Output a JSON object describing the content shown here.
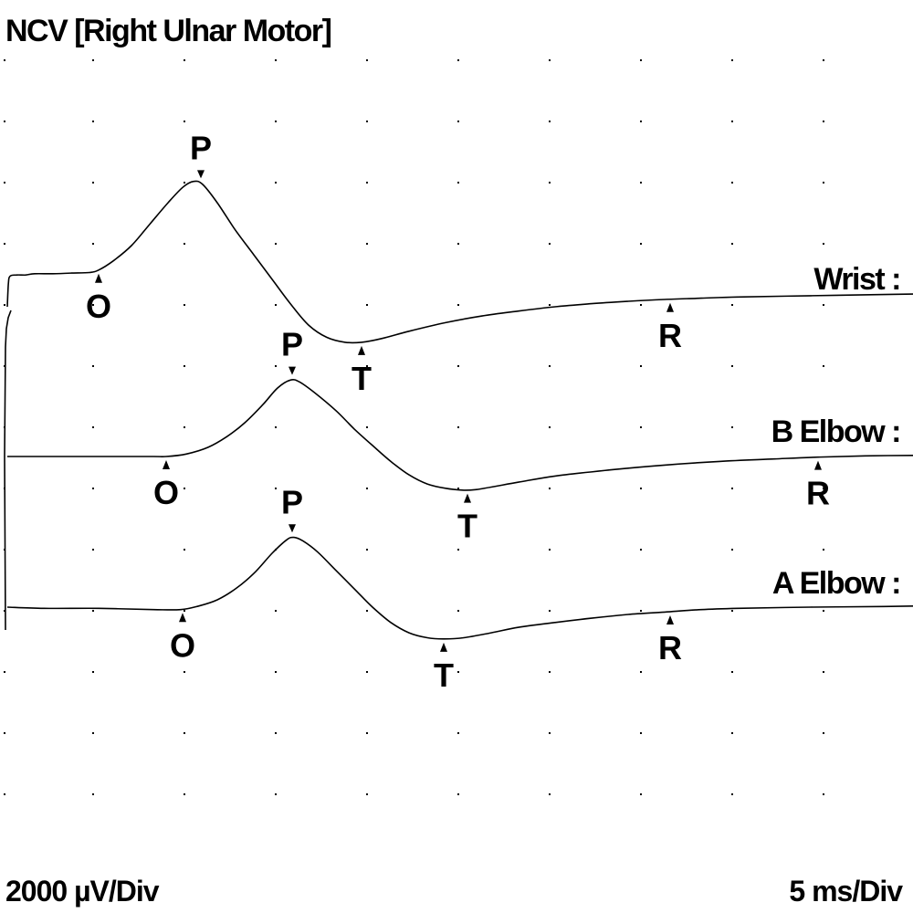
{
  "chart_data": {
    "type": "line",
    "title": "NCV [Right Ulnar Motor]",
    "y_scale_label": "2000 µV/Div",
    "x_scale_label": "5 ms/Div",
    "y_per_div_uV": 2000,
    "x_per_div_ms": 5,
    "x_range_ms": [
      0,
      50
    ],
    "grid": "dotted",
    "series": [
      {
        "name": "Wrist :",
        "points": [
          [
            0.0,
            0.0
          ],
          [
            0.06,
            0.38
          ],
          [
            0.15,
            0.5
          ],
          [
            0.5,
            0.52
          ],
          [
            1.0,
            0.52
          ],
          [
            1.5,
            0.54
          ],
          [
            2.5,
            0.54
          ],
          [
            3.5,
            0.55
          ],
          [
            4.5,
            0.56
          ],
          [
            5.0,
            0.6
          ],
          [
            5.8,
            0.75
          ],
          [
            6.8,
            1.0
          ],
          [
            7.8,
            1.35
          ],
          [
            8.8,
            1.7
          ],
          [
            9.6,
            1.95
          ],
          [
            10.2,
            2.05
          ],
          [
            10.7,
            2.0
          ],
          [
            11.5,
            1.7
          ],
          [
            12.5,
            1.25
          ],
          [
            13.5,
            0.85
          ],
          [
            14.5,
            0.45
          ],
          [
            15.5,
            0.05
          ],
          [
            16.5,
            -0.3
          ],
          [
            17.5,
            -0.5
          ],
          [
            18.5,
            -0.58
          ],
          [
            19.4,
            -0.58
          ],
          [
            20.5,
            -0.52
          ],
          [
            22.0,
            -0.4
          ],
          [
            24.0,
            -0.26
          ],
          [
            26.0,
            -0.15
          ],
          [
            28.0,
            -0.07
          ],
          [
            30.0,
            0.0
          ],
          [
            32.0,
            0.05
          ],
          [
            34.0,
            0.09
          ],
          [
            36.0,
            0.12
          ],
          [
            38.0,
            0.14
          ],
          [
            40.0,
            0.16
          ],
          [
            44.0,
            0.18
          ],
          [
            48.0,
            0.2
          ],
          [
            50.0,
            0.21
          ]
        ],
        "markers": [
          {
            "label": "O",
            "x_ms": 5.0
          },
          {
            "label": "P",
            "x_ms": 10.6
          },
          {
            "label": "T",
            "x_ms": 19.4
          },
          {
            "label": "R",
            "x_ms": 36.3
          }
        ]
      },
      {
        "name": "B Elbow :",
        "points": [
          [
            0.0,
            0.0
          ],
          [
            2.0,
            0.0
          ],
          [
            5.0,
            0.0
          ],
          [
            8.0,
            0.0
          ],
          [
            8.7,
            0.0
          ],
          [
            9.8,
            0.04
          ],
          [
            11.0,
            0.15
          ],
          [
            12.0,
            0.32
          ],
          [
            13.0,
            0.55
          ],
          [
            14.0,
            0.85
          ],
          [
            14.8,
            1.12
          ],
          [
            15.5,
            1.25
          ],
          [
            16.0,
            1.22
          ],
          [
            16.8,
            1.05
          ],
          [
            18.0,
            0.75
          ],
          [
            19.0,
            0.45
          ],
          [
            20.0,
            0.18
          ],
          [
            21.0,
            -0.08
          ],
          [
            22.0,
            -0.3
          ],
          [
            23.0,
            -0.45
          ],
          [
            24.0,
            -0.52
          ],
          [
            25.0,
            -0.55
          ],
          [
            25.7,
            -0.54
          ],
          [
            26.5,
            -0.5
          ],
          [
            28.0,
            -0.42
          ],
          [
            30.0,
            -0.32
          ],
          [
            33.0,
            -0.22
          ],
          [
            36.0,
            -0.14
          ],
          [
            39.0,
            -0.08
          ],
          [
            42.0,
            -0.04
          ],
          [
            44.4,
            -0.01
          ],
          [
            47.0,
            0.01
          ],
          [
            50.0,
            0.02
          ]
        ],
        "markers": [
          {
            "label": "O",
            "x_ms": 8.7
          },
          {
            "label": "P",
            "x_ms": 15.6
          },
          {
            "label": "T",
            "x_ms": 25.2
          },
          {
            "label": "R",
            "x_ms": 44.4
          }
        ]
      },
      {
        "name": "A Elbow :",
        "points": [
          [
            0.0,
            0.0
          ],
          [
            2.0,
            -0.02
          ],
          [
            5.0,
            -0.02
          ],
          [
            8.0,
            -0.04
          ],
          [
            9.5,
            -0.04
          ],
          [
            10.5,
            0.02
          ],
          [
            11.5,
            0.12
          ],
          [
            12.5,
            0.3
          ],
          [
            13.5,
            0.55
          ],
          [
            14.5,
            0.88
          ],
          [
            15.3,
            1.1
          ],
          [
            15.7,
            1.14
          ],
          [
            16.2,
            1.08
          ],
          [
            17.0,
            0.9
          ],
          [
            18.0,
            0.6
          ],
          [
            19.0,
            0.3
          ],
          [
            20.0,
            0.0
          ],
          [
            21.0,
            -0.25
          ],
          [
            22.0,
            -0.42
          ],
          [
            23.0,
            -0.5
          ],
          [
            23.9,
            -0.52
          ],
          [
            25.0,
            -0.5
          ],
          [
            26.5,
            -0.42
          ],
          [
            28.0,
            -0.33
          ],
          [
            30.0,
            -0.25
          ],
          [
            32.0,
            -0.18
          ],
          [
            34.0,
            -0.12
          ],
          [
            36.0,
            -0.08
          ],
          [
            38.0,
            -0.04
          ],
          [
            40.0,
            -0.02
          ],
          [
            44.0,
            0.0
          ],
          [
            48.0,
            0.01
          ],
          [
            50.0,
            0.02
          ]
        ],
        "markers": [
          {
            "label": "O",
            "x_ms": 9.6
          },
          {
            "label": "P",
            "x_ms": 15.6
          },
          {
            "label": "T",
            "x_ms": 23.9
          },
          {
            "label": "R",
            "x_ms": 36.3
          }
        ]
      }
    ]
  }
}
